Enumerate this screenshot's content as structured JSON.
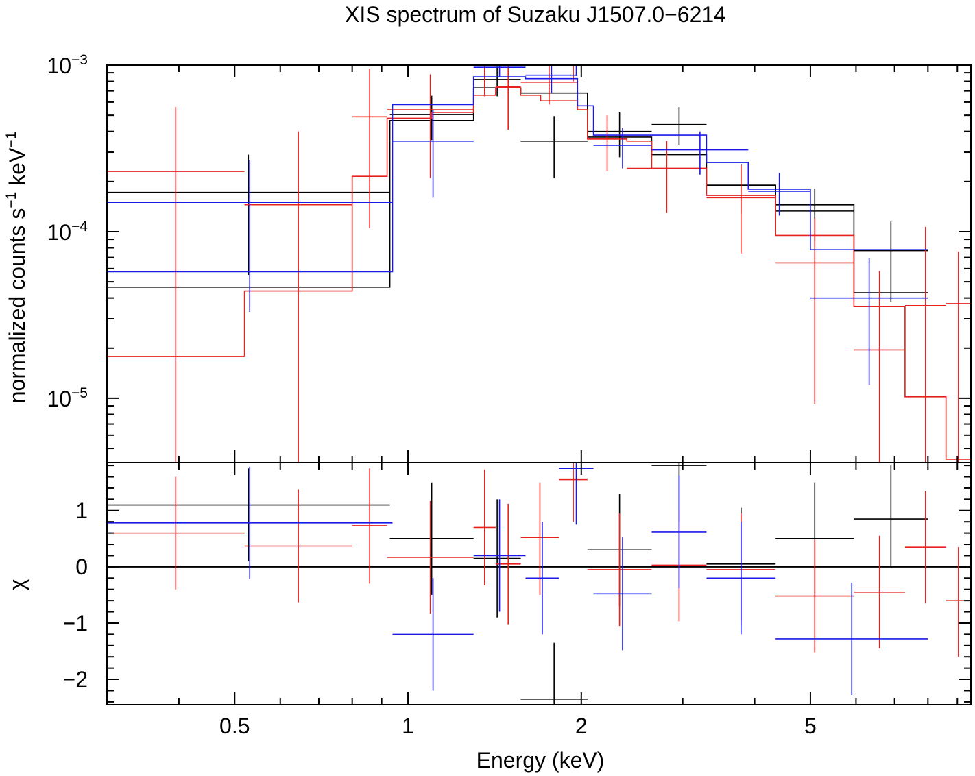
{
  "chart_data": {
    "type": "step-with-errorbars",
    "title": "XIS spectrum of Suzaku J1507.0−6214",
    "x_axis": {
      "label": "Energy (keV)",
      "scale": "log",
      "range": [
        0.3,
        9.5
      ],
      "tick_labels": [
        {
          "v": 0.5,
          "t": "0.5"
        },
        {
          "v": 1,
          "t": "1"
        },
        {
          "v": 2,
          "t": "2"
        },
        {
          "v": 5,
          "t": "5"
        }
      ]
    },
    "top_panel": {
      "ylabel": "normalized counts s⁻¹ keV⁻¹",
      "ylabel_parts": {
        "base": "normalized counts s",
        "sup1": "−1",
        "mid": " keV",
        "sup2": "−1"
      },
      "scale": "log",
      "range": [
        4.1e-06,
        0.001
      ],
      "tick_labels": [
        {
          "v": 0.001,
          "base": "10",
          "exp": "−3"
        },
        {
          "v": 0.0001,
          "base": "10",
          "exp": "−4"
        },
        {
          "v": 1e-05,
          "base": "10",
          "exp": "−5"
        }
      ]
    },
    "bottom_panel": {
      "ylabel": "χ",
      "range": [
        -2.45,
        1.85
      ],
      "tick_labels": [
        {
          "v": 1,
          "t": "1"
        },
        {
          "v": 0,
          "t": "0"
        },
        {
          "v": -1,
          "t": "−1"
        },
        {
          "v": -2,
          "t": "−2"
        }
      ]
    },
    "colors": {
      "black": "#000000",
      "red": "#e8201e",
      "blue": "#1a1ae8"
    },
    "series": [
      {
        "name": "black",
        "color": "#000000",
        "model_steps": [
          [
            0.3,
            4.65e-05
          ],
          [
            0.93,
            0.000465
          ],
          [
            1.3,
            0.00073
          ],
          [
            1.57,
            0.00068
          ],
          [
            2.05,
            0.00037
          ],
          [
            2.65,
            0.00029
          ],
          [
            3.3,
            0.00019
          ],
          [
            4.35,
            0.000145
          ],
          [
            5.95,
            4.3e-05
          ],
          [
            8.0,
            4.3e-05
          ]
        ],
        "spectrum": [
          {
            "xlo": 0.3,
            "xhi": 0.93,
            "y": 0.000172,
            "ylo": 5.5e-05,
            "yhi": 0.00029
          },
          {
            "xlo": 0.93,
            "xhi": 1.3,
            "y": 0.000505,
            "ylo": 0.000355,
            "yhi": 0.000655
          },
          {
            "xlo": 1.3,
            "xhi": 1.57,
            "y": 0.00082,
            "ylo": 0.00065,
            "yhi": 0.00098
          },
          {
            "xlo": 1.57,
            "xhi": 2.05,
            "y": 0.00035,
            "ylo": 0.00021,
            "yhi": 0.000495
          },
          {
            "xlo": 2.05,
            "xhi": 2.65,
            "y": 0.0004,
            "ylo": 0.00028,
            "yhi": 0.00052
          },
          {
            "xlo": 2.65,
            "xhi": 3.3,
            "y": 0.00044,
            "ylo": 0.00033,
            "yhi": 0.00056
          },
          {
            "xlo": 3.3,
            "xhi": 4.35,
            "y": 0.00019,
            "ylo": 0.00013,
            "yhi": 0.000255
          },
          {
            "xlo": 4.35,
            "xhi": 5.95,
            "y": 0.000133,
            "ylo": 8.7e-05,
            "yhi": 0.00018
          },
          {
            "xlo": 5.95,
            "xhi": 8.0,
            "y": 7.7e-05,
            "ylo": 3.8e-05,
            "yhi": 0.000115
          }
        ],
        "residuals": [
          {
            "xlo": 0.3,
            "xhi": 0.93,
            "y": 1.1,
            "ylo": 0.1,
            "yhi": 1.75
          },
          {
            "xlo": 0.93,
            "xhi": 1.3,
            "y": 0.5,
            "ylo": -0.5,
            "yhi": 1.5
          },
          {
            "xlo": 1.3,
            "xhi": 1.57,
            "y": 0.15,
            "ylo": -0.9,
            "yhi": 1.2
          },
          {
            "xlo": 1.57,
            "xhi": 2.05,
            "y": -2.35,
            "ylo": -3.0,
            "yhi": -1.35
          },
          {
            "xlo": 2.05,
            "xhi": 2.65,
            "y": 0.3,
            "ylo": -0.7,
            "yhi": 1.3
          },
          {
            "xlo": 2.65,
            "xhi": 3.3,
            "y": 1.8,
            "ylo": 0.8,
            "yhi": 2.8
          },
          {
            "xlo": 3.3,
            "xhi": 4.35,
            "y": 0.05,
            "ylo": -0.95,
            "yhi": 1.05
          },
          {
            "xlo": 4.35,
            "xhi": 5.95,
            "y": 0.5,
            "ylo": -0.5,
            "yhi": 1.5
          },
          {
            "xlo": 5.95,
            "xhi": 8.0,
            "y": 0.85,
            "ylo": 0.0,
            "yhi": 1.8
          }
        ]
      },
      {
        "name": "red",
        "color": "#e8201e",
        "model_steps": [
          [
            0.3,
            1.78e-05
          ],
          [
            0.52,
            4.4e-05
          ],
          [
            0.8,
            0.000215
          ],
          [
            0.92,
            0.00048
          ],
          [
            1.1,
            0.00052
          ],
          [
            1.3,
            0.00066
          ],
          [
            1.42,
            0.00073
          ],
          [
            1.57,
            0.00066
          ],
          [
            1.7,
            0.00061
          ],
          [
            1.97,
            0.00054
          ],
          [
            2.05,
            0.00036
          ],
          [
            2.4,
            0.00035
          ],
          [
            2.65,
            0.00024
          ],
          [
            3.3,
            0.000165
          ],
          [
            4.35,
            9.5e-05
          ],
          [
            5.95,
            3.55e-05
          ],
          [
            7.3,
            1.02e-05
          ],
          [
            8.6,
            4.3e-06
          ],
          [
            9.5,
            4.3e-06
          ]
        ],
        "spectrum": [
          {
            "xlo": 0.3,
            "xhi": 0.52,
            "y": 0.00023,
            "ylo": 3e-06,
            "yhi": 0.00056
          },
          {
            "xlo": 0.52,
            "xhi": 0.8,
            "y": 0.000145,
            "ylo": 3e-06,
            "yhi": 0.0004
          },
          {
            "xlo": 0.8,
            "xhi": 0.92,
            "y": 0.00049,
            "ylo": 0.000105,
            "yhi": 0.00095
          },
          {
            "xlo": 0.92,
            "xhi": 1.3,
            "y": 0.00054,
            "ylo": 0.00021,
            "yhi": 0.00088
          },
          {
            "xlo": 1.3,
            "xhi": 1.42,
            "y": 0.00099,
            "ylo": 0.00065,
            "yhi": 0.00135
          },
          {
            "xlo": 1.42,
            "xhi": 1.57,
            "y": 0.00074,
            "ylo": 0.00041,
            "yhi": 0.00105
          },
          {
            "xlo": 1.57,
            "xhi": 1.97,
            "y": 0.00079,
            "ylo": 0.00058,
            "yhi": 0.00102
          },
          {
            "xlo": 1.83,
            "xhi": 2.05,
            "y": 0.00105,
            "ylo": 0.0008,
            "yhi": 0.0013
          },
          {
            "xlo": 2.05,
            "xhi": 2.4,
            "y": 0.00036,
            "ylo": 0.00023,
            "yhi": 0.0005
          },
          {
            "xlo": 2.4,
            "xhi": 3.3,
            "y": 0.00024,
            "ylo": 0.00013,
            "yhi": 0.00035
          },
          {
            "xlo": 3.3,
            "xhi": 4.35,
            "y": 0.00016,
            "ylo": 7.4e-05,
            "yhi": 0.00025
          },
          {
            "xlo": 4.35,
            "xhi": 5.95,
            "y": 6.5e-05,
            "ylo": 9.2e-06,
            "yhi": 0.00012
          },
          {
            "xlo": 5.95,
            "xhi": 7.3,
            "y": 1.95e-05,
            "ylo": 3e-06,
            "yhi": 5.8e-05
          },
          {
            "xlo": 7.3,
            "xhi": 8.6,
            "y": 3.6e-05,
            "ylo": 3e-06,
            "yhi": 0.000107
          },
          {
            "xlo": 8.6,
            "xhi": 9.5,
            "y": 3.7e-05,
            "ylo": 3e-06,
            "yhi": 7.6e-05
          }
        ],
        "residuals": [
          {
            "xlo": 0.3,
            "xhi": 0.52,
            "y": 0.6,
            "ylo": -0.4,
            "yhi": 1.6
          },
          {
            "xlo": 0.52,
            "xhi": 0.8,
            "y": 0.37,
            "ylo": -0.63,
            "yhi": 1.37
          },
          {
            "xlo": 0.8,
            "xhi": 0.92,
            "y": 0.73,
            "ylo": -0.3,
            "yhi": 1.75
          },
          {
            "xlo": 0.92,
            "xhi": 1.3,
            "y": 0.17,
            "ylo": -0.83,
            "yhi": 1.17
          },
          {
            "xlo": 1.3,
            "xhi": 1.42,
            "y": 0.7,
            "ylo": -0.33,
            "yhi": 1.73
          },
          {
            "xlo": 1.42,
            "xhi": 1.57,
            "y": 0.05,
            "ylo": -1.02,
            "yhi": 1.12
          },
          {
            "xlo": 1.57,
            "xhi": 1.83,
            "y": 0.52,
            "ylo": -0.5,
            "yhi": 1.5
          },
          {
            "xlo": 1.83,
            "xhi": 2.05,
            "y": 1.55,
            "ylo": 0.8,
            "yhi": 2.3
          },
          {
            "xlo": 2.05,
            "xhi": 2.65,
            "y": -0.05,
            "ylo": -1.05,
            "yhi": 0.95
          },
          {
            "xlo": 2.65,
            "xhi": 3.3,
            "y": 0.03,
            "ylo": -0.97,
            "yhi": 1.03
          },
          {
            "xlo": 3.3,
            "xhi": 4.35,
            "y": -0.05,
            "ylo": -1.05,
            "yhi": 0.95
          },
          {
            "xlo": 4.35,
            "xhi": 5.95,
            "y": -0.52,
            "ylo": -1.52,
            "yhi": 0.48
          },
          {
            "xlo": 5.95,
            "xhi": 7.3,
            "y": -0.45,
            "ylo": -1.45,
            "yhi": 0.55
          },
          {
            "xlo": 7.3,
            "xhi": 8.6,
            "y": 0.35,
            "ylo": -0.65,
            "yhi": 1.35
          },
          {
            "xlo": 8.6,
            "xhi": 9.5,
            "y": -0.6,
            "ylo": -1.6,
            "yhi": 0.35
          }
        ]
      },
      {
        "name": "blue",
        "color": "#1a1ae8",
        "model_steps": [
          [
            0.3,
            5.75e-05
          ],
          [
            0.94,
            0.00058
          ],
          [
            1.3,
            0.00085
          ],
          [
            1.6,
            0.00083
          ],
          [
            1.97,
            0.00057
          ],
          [
            2.1,
            0.00038
          ],
          [
            3.3,
            0.00026
          ],
          [
            3.9,
            0.00018
          ],
          [
            5.0,
            7.8e-05
          ],
          [
            8.0,
            7.8e-05
          ]
        ],
        "spectrum": [
          {
            "xlo": 0.3,
            "xhi": 0.94,
            "y": 0.00015,
            "ylo": 3.3e-05,
            "yhi": 0.00027
          },
          {
            "xlo": 0.94,
            "xhi": 1.3,
            "y": 0.00035,
            "ylo": 0.00016,
            "yhi": 0.00054
          },
          {
            "xlo": 1.3,
            "xhi": 1.6,
            "y": 0.00097,
            "ylo": 0.00085,
            "yhi": 0.00112
          },
          {
            "xlo": 1.6,
            "xhi": 1.97,
            "y": 0.00087,
            "ylo": 0.00068,
            "yhi": 0.00106
          },
          {
            "xlo": 1.83,
            "xhi": 2.1,
            "y": 0.00101,
            "ylo": 0.00086,
            "yhi": 0.00116
          },
          {
            "xlo": 2.1,
            "xhi": 2.65,
            "y": 0.00033,
            "ylo": 0.00024,
            "yhi": 0.00042
          },
          {
            "xlo": 2.65,
            "xhi": 3.9,
            "y": 0.00031,
            "ylo": 0.00022,
            "yhi": 0.0004
          },
          {
            "xlo": 3.9,
            "xhi": 5.0,
            "y": 0.000175,
            "ylo": 0.000125,
            "yhi": 0.000225
          },
          {
            "xlo": 5.0,
            "xhi": 8.0,
            "y": 4e-05,
            "ylo": 1.2e-05,
            "yhi": 6.9e-05
          }
        ],
        "residuals": [
          {
            "xlo": 0.3,
            "xhi": 0.94,
            "y": 0.78,
            "ylo": -0.22,
            "yhi": 1.78
          },
          {
            "xlo": 0.94,
            "xhi": 1.3,
            "y": -1.2,
            "ylo": -2.2,
            "yhi": -0.2
          },
          {
            "xlo": 1.3,
            "xhi": 1.6,
            "y": 0.2,
            "ylo": -0.8,
            "yhi": 1.2
          },
          {
            "xlo": 1.6,
            "xhi": 1.83,
            "y": -0.2,
            "ylo": -1.2,
            "yhi": 0.8
          },
          {
            "xlo": 1.83,
            "xhi": 2.1,
            "y": 1.75,
            "ylo": 0.75,
            "yhi": 2.75
          },
          {
            "xlo": 2.1,
            "xhi": 2.65,
            "y": -0.48,
            "ylo": -1.48,
            "yhi": 0.52
          },
          {
            "xlo": 2.65,
            "xhi": 3.3,
            "y": 0.62,
            "ylo": -0.38,
            "yhi": 1.62
          },
          {
            "xlo": 3.3,
            "xhi": 4.35,
            "y": -0.2,
            "ylo": -1.2,
            "yhi": 0.8
          },
          {
            "xlo": 4.35,
            "xhi": 8.0,
            "y": -1.28,
            "ylo": -2.28,
            "yhi": -0.28
          }
        ]
      }
    ]
  }
}
